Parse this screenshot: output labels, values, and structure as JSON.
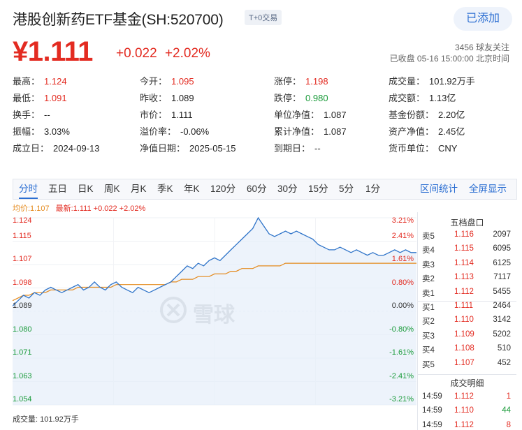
{
  "header": {
    "title": "港股创新药ETF基金(SH:520700)",
    "badge": "T+0交易",
    "follow_button": "已添加"
  },
  "quote": {
    "price": "¥1.111",
    "change": "+0.022",
    "change_pct": "+2.02%",
    "followers": "3456 球友关注",
    "status": "已收盘 05-16 15:00:00 北京时间"
  },
  "stats": [
    [
      {
        "k": "最高：",
        "v": "1.124",
        "c": "red"
      },
      {
        "k": "今开：",
        "v": "1.095",
        "c": "red"
      },
      {
        "k": "涨停：",
        "v": "1.198",
        "c": "red"
      },
      {
        "k": "成交量：",
        "v": "101.92万手",
        "c": ""
      }
    ],
    [
      {
        "k": "最低：",
        "v": "1.091",
        "c": "red"
      },
      {
        "k": "昨收：",
        "v": "1.089",
        "c": ""
      },
      {
        "k": "跌停：",
        "v": "0.980",
        "c": "green"
      },
      {
        "k": "成交额：",
        "v": "1.13亿",
        "c": ""
      }
    ],
    [
      {
        "k": "换手：",
        "v": "--",
        "c": ""
      },
      {
        "k": "市价：",
        "v": "1.111",
        "c": ""
      },
      {
        "k": "单位净值：",
        "v": "1.087",
        "c": ""
      },
      {
        "k": "基金份额：",
        "v": "2.20亿",
        "c": ""
      }
    ],
    [
      {
        "k": "振幅：",
        "v": "3.03%",
        "c": ""
      },
      {
        "k": "溢价率：",
        "v": "-0.06%",
        "c": ""
      },
      {
        "k": "累计净值：",
        "v": "1.087",
        "c": ""
      },
      {
        "k": "资产净值：",
        "v": "2.45亿",
        "c": ""
      }
    ],
    [
      {
        "k": "成立日：",
        "v": "2024-09-13",
        "c": ""
      },
      {
        "k": "净值日期：",
        "v": "2025-05-15",
        "c": ""
      },
      {
        "k": "到期日：",
        "v": "--",
        "c": ""
      },
      {
        "k": "货币单位：",
        "v": "CNY",
        "c": ""
      }
    ]
  ],
  "tabs": [
    "分时",
    "五日",
    "日K",
    "周K",
    "月K",
    "季K",
    "年K",
    "120分",
    "60分",
    "30分",
    "15分",
    "5分",
    "1分"
  ],
  "tab_links": [
    "区间统计",
    "全屏显示"
  ],
  "chart_legend": {
    "avg": "均价:1.107",
    "latest": "最新:1.111 +0.022 +2.02%"
  },
  "volume_label": "成交量: 101.92万手",
  "watermark_text": "雪球",
  "chart_data": {
    "type": "line",
    "ylim": [
      1.054,
      1.124
    ],
    "left_ticks": [
      "1.124",
      "1.115",
      "1.107",
      "1.098",
      "1.089",
      "1.080",
      "1.071",
      "1.063",
      "1.054"
    ],
    "right_ticks": [
      "3.21%",
      "2.41%",
      "1.61%",
      "0.80%",
      "0.00%",
      "-0.80%",
      "-1.61%",
      "-2.41%",
      "-3.21%"
    ],
    "baseline": 1.089,
    "series": [
      {
        "values": [
          1.091,
          1.093,
          1.095,
          1.094,
          1.096,
          1.095,
          1.097,
          1.098,
          1.097,
          1.096,
          1.097,
          1.098,
          1.099,
          1.097,
          1.098,
          1.1,
          1.098,
          1.097,
          1.099,
          1.1,
          1.098,
          1.097,
          1.096,
          1.098,
          1.097,
          1.096,
          1.097,
          1.098,
          1.099,
          1.1,
          1.102,
          1.104,
          1.106,
          1.105,
          1.107,
          1.106,
          1.108,
          1.109,
          1.108,
          1.11,
          1.112,
          1.114,
          1.116,
          1.118,
          1.12,
          1.124,
          1.121,
          1.118,
          1.117,
          1.118,
          1.119,
          1.118,
          1.119,
          1.118,
          1.117,
          1.116,
          1.114,
          1.113,
          1.112,
          1.112,
          1.113,
          1.112,
          1.111,
          1.112,
          1.111,
          1.11,
          1.111,
          1.11,
          1.11,
          1.111,
          1.112,
          1.111,
          1.112,
          1.111,
          1.111
        ]
      },
      {
        "values": [
          1.093,
          1.094,
          1.095,
          1.095,
          1.096,
          1.096,
          1.096,
          1.097,
          1.097,
          1.097,
          1.097,
          1.097,
          1.098,
          1.098,
          1.098,
          1.098,
          1.098,
          1.098,
          1.098,
          1.099,
          1.099,
          1.099,
          1.099,
          1.099,
          1.099,
          1.099,
          1.099,
          1.099,
          1.099,
          1.1,
          1.1,
          1.101,
          1.101,
          1.101,
          1.102,
          1.102,
          1.102,
          1.103,
          1.103,
          1.103,
          1.104,
          1.104,
          1.105,
          1.105,
          1.105,
          1.106,
          1.106,
          1.106,
          1.106,
          1.106,
          1.107,
          1.107,
          1.107,
          1.107,
          1.107,
          1.107,
          1.107,
          1.107,
          1.107,
          1.107,
          1.107,
          1.107,
          1.107,
          1.107,
          1.107,
          1.107,
          1.107,
          1.107,
          1.107,
          1.107,
          1.107,
          1.107,
          1.107,
          1.107,
          1.107
        ]
      }
    ]
  },
  "orderbook": {
    "title": "五档盘口",
    "asks": [
      {
        "label": "卖5",
        "price": "1.116",
        "vol": "2097"
      },
      {
        "label": "卖4",
        "price": "1.115",
        "vol": "6095"
      },
      {
        "label": "卖3",
        "price": "1.114",
        "vol": "6125"
      },
      {
        "label": "卖2",
        "price": "1.113",
        "vol": "7117"
      },
      {
        "label": "卖1",
        "price": "1.112",
        "vol": "5455"
      }
    ],
    "bids": [
      {
        "label": "买1",
        "price": "1.111",
        "vol": "2464"
      },
      {
        "label": "买2",
        "price": "1.110",
        "vol": "3142"
      },
      {
        "label": "买3",
        "price": "1.109",
        "vol": "5202"
      },
      {
        "label": "买4",
        "price": "1.108",
        "vol": "510"
      },
      {
        "label": "买5",
        "price": "1.107",
        "vol": "452"
      }
    ],
    "trades_title": "成交明细",
    "trades": [
      {
        "time": "14:59",
        "price": "1.112",
        "vol": "1",
        "vc": "red"
      },
      {
        "time": "14:59",
        "price": "1.110",
        "vol": "44",
        "vc": "green"
      },
      {
        "time": "14:59",
        "price": "1.112",
        "vol": "8",
        "vc": "red"
      }
    ]
  },
  "colors": {
    "price_line": "#2f74c9",
    "avg_line": "#e48a1d",
    "area_fill": "#e6eefa",
    "up": "#e32b21",
    "down": "#1a9b3a",
    "accent": "#2b6ed2"
  }
}
